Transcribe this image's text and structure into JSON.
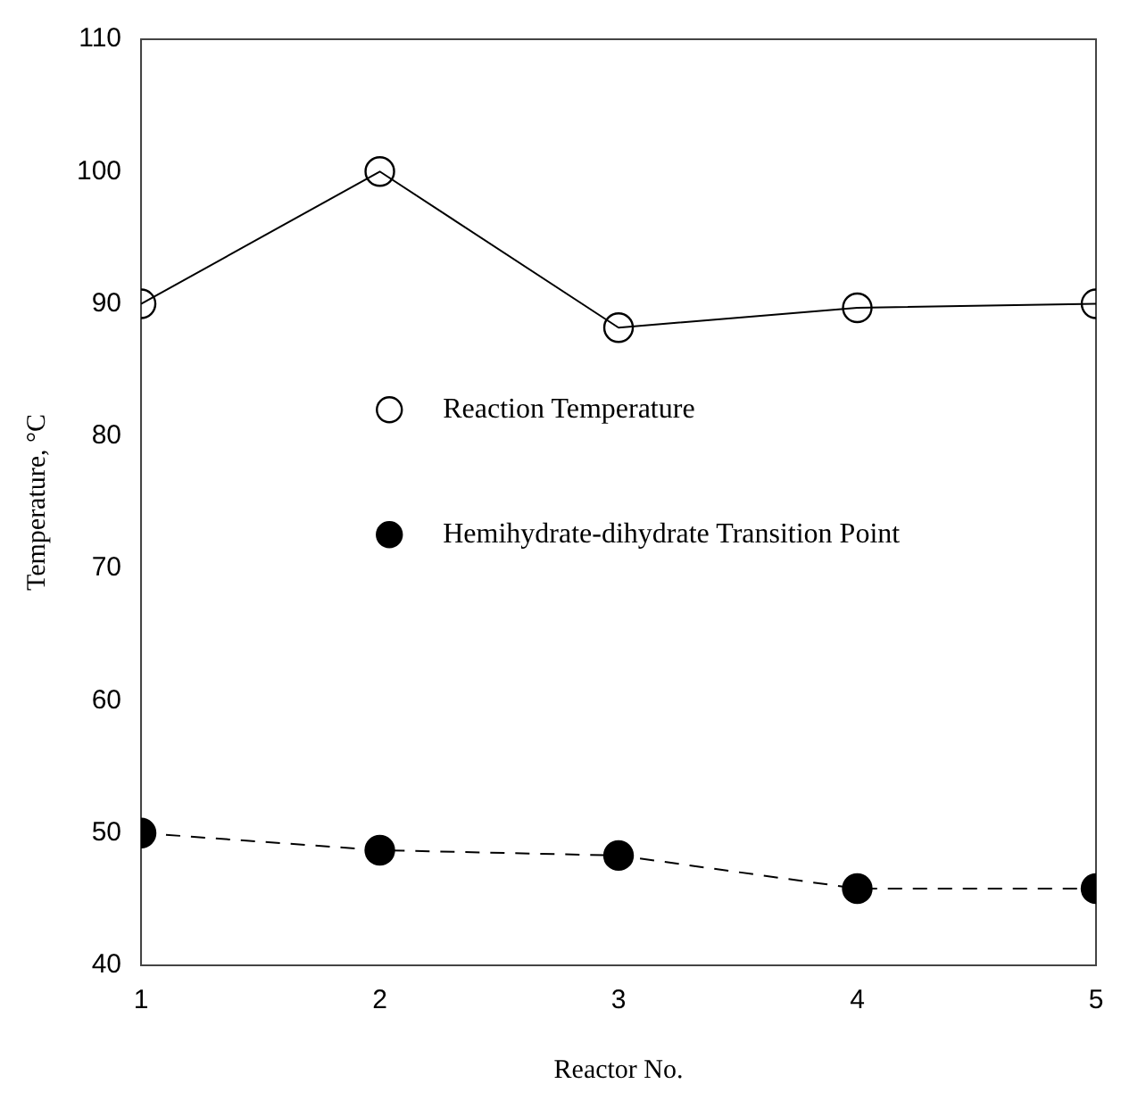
{
  "chart_data": {
    "type": "line",
    "xlabel": "Reactor No.",
    "ylabel": "Temperature, °C",
    "x": [
      1,
      2,
      3,
      4,
      5
    ],
    "xlim": [
      1,
      5
    ],
    "xticks": [
      1,
      2,
      3,
      4,
      5
    ],
    "ylim": [
      40,
      110
    ],
    "yticks": [
      40,
      50,
      60,
      70,
      80,
      90,
      100,
      110
    ],
    "series": [
      {
        "name": "Reaction Temperature",
        "color": "#000000",
        "values": [
          90,
          100,
          88.2,
          89.7,
          90
        ],
        "marker": "circle",
        "line_style": "solid"
      },
      {
        "name": "Hemihydrate-dihydrate Transition Point",
        "color": "#000000",
        "values": [
          50,
          48.7,
          48.3,
          45.8,
          45.8
        ],
        "marker": "circle",
        "line_style": "dashed"
      }
    ],
    "grid": false,
    "legend": "left"
  }
}
